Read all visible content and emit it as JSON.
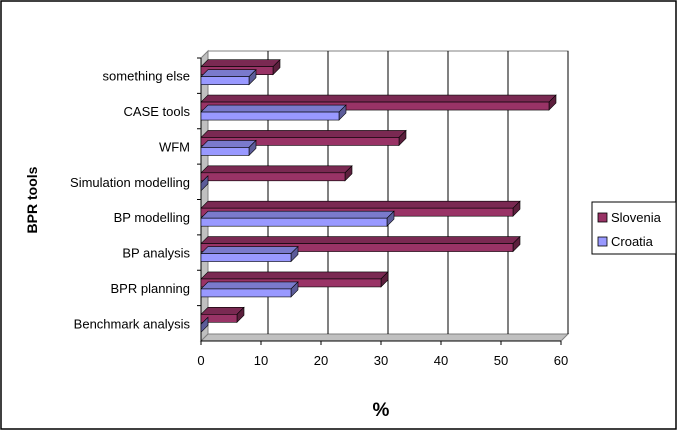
{
  "chart_data": {
    "type": "bar",
    "orientation": "horizontal",
    "style": "3d",
    "title": "",
    "xlabel": "%",
    "ylabel": "BPR tools",
    "xlim": [
      0,
      60
    ],
    "x_ticks": [
      "0",
      "10",
      "20",
      "30",
      "40",
      "50",
      "60"
    ],
    "grid": "vertical",
    "legend_position": "right",
    "categories": [
      "something else",
      "CASE tools",
      "WFM",
      "Simulation modelling",
      "BP modelling",
      "BP analysis",
      "BPR planning",
      "Benchmark analysis"
    ],
    "series": [
      {
        "name": "Slovenia",
        "color": "#993366",
        "values": [
          12,
          58,
          33,
          24,
          52,
          52,
          30,
          6
        ]
      },
      {
        "name": "Croatia",
        "color": "#9999FF",
        "values": [
          8,
          23,
          8,
          0,
          31,
          15,
          15,
          0
        ]
      }
    ]
  }
}
